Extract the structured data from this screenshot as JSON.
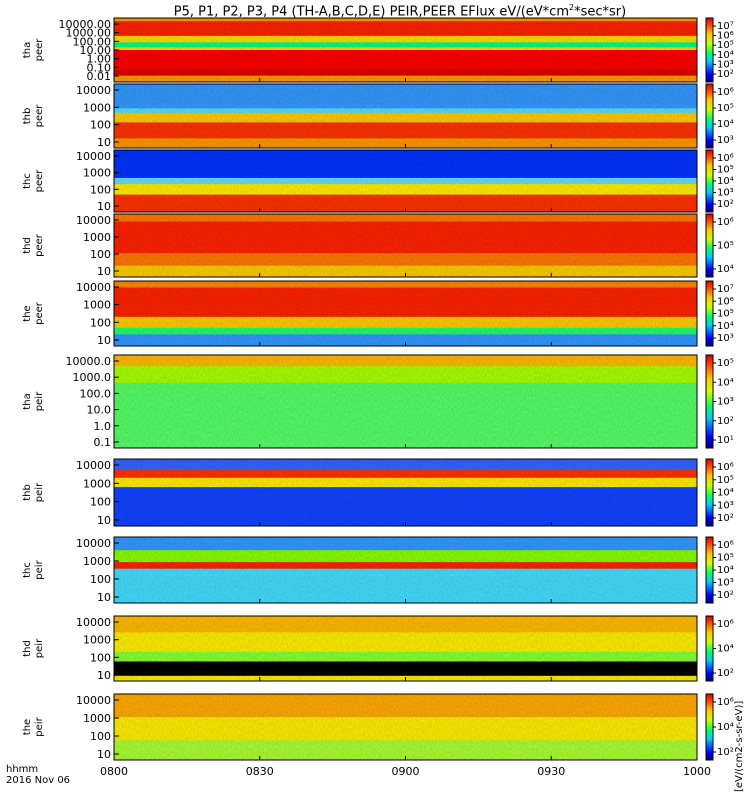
{
  "title": {
    "main": "P5, P1, P2, P3, P4 (TH-A,B,C,D,E) PEIR,PEER EFlux eV/(eV*cm",
    "sup": "2",
    "tail": "*sec*sr)"
  },
  "chart_data": {
    "type": "heatmap",
    "x_ticks": [
      "0800",
      "0830",
      "0900",
      "0930",
      "1000"
    ],
    "x_range": [
      "08:00",
      "10:00"
    ],
    "x_label": [
      "hhmm",
      "2016 Nov 06"
    ],
    "colorbar_label": "[eV/(cm2-s-sr-eV)]",
    "panels": [
      {
        "id": "tha-peer",
        "label": [
          "tha",
          "peer"
        ],
        "y_ticks": [
          "10000.00",
          "1000.00",
          "100.00",
          "10.00",
          "1.00",
          "0.10",
          "0.01"
        ],
        "cbar_ticks": [
          "10⁷",
          "10⁶",
          "10⁵",
          "10⁴",
          "10³",
          "10²"
        ]
      },
      {
        "id": "thb-peer",
        "label": [
          "thb",
          "peer"
        ],
        "y_ticks": [
          "10000",
          "1000",
          "100",
          "10"
        ],
        "cbar_ticks": [
          "10⁶",
          "10⁵",
          "10⁴",
          "10³"
        ]
      },
      {
        "id": "thc-peer",
        "label": [
          "thc",
          "peer"
        ],
        "y_ticks": [
          "10000",
          "1000",
          "100",
          "10"
        ],
        "cbar_ticks": [
          "10⁶",
          "10⁵",
          "10⁴",
          "10³",
          "10²"
        ]
      },
      {
        "id": "thd-peer",
        "label": [
          "thd",
          "peer"
        ],
        "y_ticks": [
          "10000",
          "1000",
          "100",
          "10"
        ],
        "cbar_ticks": [
          "10⁶",
          "10⁵",
          "10⁴"
        ]
      },
      {
        "id": "the-peer",
        "label": [
          "the",
          "peer"
        ],
        "y_ticks": [
          "10000",
          "1000",
          "100",
          "10"
        ],
        "cbar_ticks": [
          "10⁷",
          "10⁶",
          "10⁵",
          "10⁴",
          "10³"
        ]
      },
      {
        "id": "tha-peir",
        "label": [
          "tha",
          "peir"
        ],
        "y_ticks": [
          "10000.0",
          "1000.0",
          "100.0",
          "10.0",
          "1.0",
          "0.1"
        ],
        "cbar_ticks": [
          "10⁵",
          "10⁴",
          "10³",
          "10²",
          "10¹"
        ]
      },
      {
        "id": "thb-peir",
        "label": [
          "thb",
          "peir"
        ],
        "y_ticks": [
          "10000",
          "1000",
          "100",
          "10"
        ],
        "cbar_ticks": [
          "10⁶",
          "10⁵",
          "10⁴",
          "10³",
          "10²"
        ]
      },
      {
        "id": "thc-peir",
        "label": [
          "thc",
          "peir"
        ],
        "y_ticks": [
          "10000",
          "1000",
          "100",
          "10"
        ],
        "cbar_ticks": [
          "10⁶",
          "10⁵",
          "10⁴",
          "10³",
          "10²"
        ]
      },
      {
        "id": "thd-peir",
        "label": [
          "thd",
          "peir"
        ],
        "y_ticks": [
          "10000",
          "1000",
          "100",
          "10"
        ],
        "cbar_ticks": [
          "10⁶",
          "10⁴",
          "10²"
        ]
      },
      {
        "id": "the-peir",
        "label": [
          "the",
          "peir"
        ],
        "y_ticks": [
          "10000",
          "1000",
          "100",
          "10"
        ],
        "cbar_ticks": [
          "10⁶",
          "10⁴",
          "10²"
        ]
      }
    ]
  }
}
